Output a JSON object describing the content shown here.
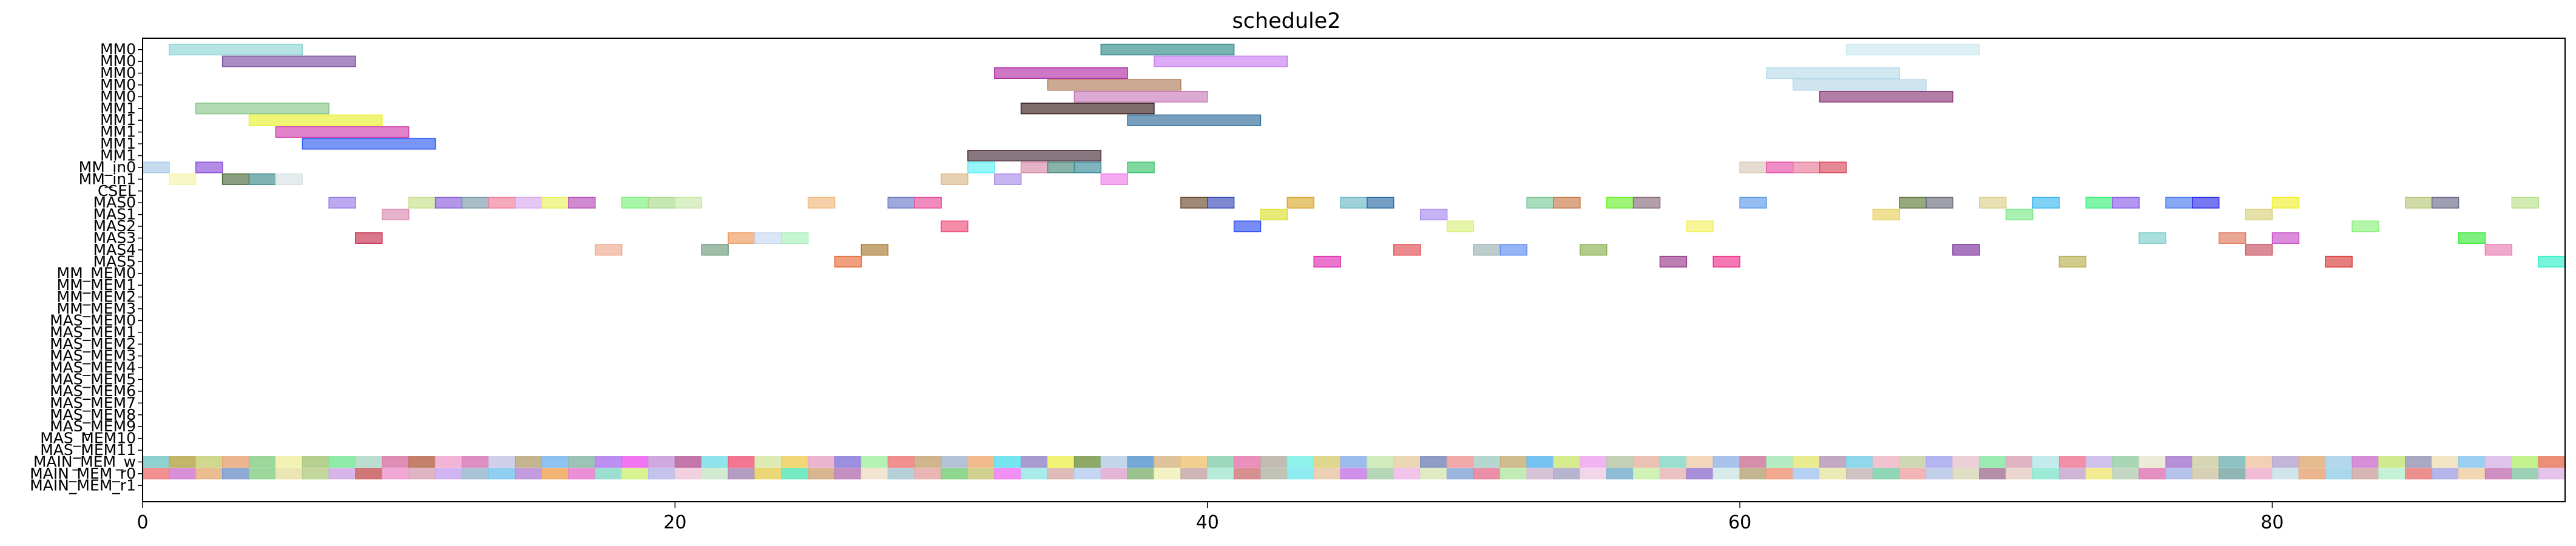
{
  "chart_data": {
    "type": "gantt",
    "title": "schedule2",
    "xlim": [
      0,
      91
    ],
    "x_ticks": [
      0,
      20,
      40,
      60,
      80
    ],
    "x_tick_labels": [
      "0",
      "20",
      "40",
      "60",
      "80"
    ],
    "rows": [
      "MM0",
      "MM0",
      "MM0",
      "MM0",
      "MM0",
      "MM1",
      "MM1",
      "MM1",
      "MM1",
      "MM1",
      "MM_in0",
      "MM_in1",
      "CSEL",
      "MAS0",
      "MAS1",
      "MAS2",
      "MAS3",
      "MAS4",
      "MAS5",
      "MM_MEM0",
      "MM_MEM1",
      "MM_MEM2",
      "MM_MEM3",
      "MAS_MEM0",
      "MAS_MEM1",
      "MAS_MEM2",
      "MAS_MEM3",
      "MAS_MEM4",
      "MAS_MEM5",
      "MAS_MEM6",
      "MAS_MEM7",
      "MAS_MEM8",
      "MAS_MEM9",
      "MAS_MEM10",
      "MAS_MEM11",
      "MAIN_MEM_w",
      "MAIN_MEM_r0",
      "MAIN_MEM_r1"
    ],
    "bars": [
      {
        "row": 0,
        "start": 1,
        "end": 6,
        "color": "#8dd3d3"
      },
      {
        "row": 0,
        "start": 36,
        "end": 41,
        "color": "#2e8b8b"
      },
      {
        "row": 0,
        "start": 64,
        "end": 69,
        "color": "#c9e8f0"
      },
      {
        "row": 1,
        "start": 3,
        "end": 8,
        "color": "#7b4f9e"
      },
      {
        "row": 1,
        "start": 38,
        "end": 43,
        "color": "#c77ff0"
      },
      {
        "row": 2,
        "start": 32,
        "end": 37,
        "color": "#b02fa6"
      },
      {
        "row": 2,
        "start": 61,
        "end": 66,
        "color": "#b8dbeb"
      },
      {
        "row": 3,
        "start": 34,
        "end": 39,
        "color": "#b07b58"
      },
      {
        "row": 3,
        "start": 62,
        "end": 67,
        "color": "#b6d6e8"
      },
      {
        "row": 4,
        "start": 35,
        "end": 40,
        "color": "#c77bb8"
      },
      {
        "row": 4,
        "start": 63,
        "end": 68,
        "color": "#8b3a7a"
      },
      {
        "row": 5,
        "start": 2,
        "end": 7,
        "color": "#88c488"
      },
      {
        "row": 5,
        "start": 33,
        "end": 38,
        "color": "#3a1e1e"
      },
      {
        "row": 6,
        "start": 4,
        "end": 9,
        "color": "#e8f02e"
      },
      {
        "row": 6,
        "start": 37,
        "end": 42,
        "color": "#2e6c9a"
      },
      {
        "row": 7,
        "start": 5,
        "end": 10,
        "color": "#d33fae"
      },
      {
        "row": 8,
        "start": 6,
        "end": 11,
        "color": "#2e5ef0"
      },
      {
        "row": 9,
        "start": 31,
        "end": 36,
        "color": "#4a2e3a"
      },
      {
        "row": 10,
        "start": 0,
        "end": 1,
        "color": "#a8c8e8"
      },
      {
        "row": 10,
        "start": 2,
        "end": 3,
        "color": "#8b4fd9"
      },
      {
        "row": 10,
        "start": 31,
        "end": 32,
        "color": "#5ef0f5"
      },
      {
        "row": 10,
        "start": 33,
        "end": 34,
        "color": "#d98ba8"
      },
      {
        "row": 10,
        "start": 34,
        "end": 35,
        "color": "#4a8b7b"
      },
      {
        "row": 10,
        "start": 35,
        "end": 36,
        "color": "#3a8b9a"
      },
      {
        "row": 10,
        "start": 37,
        "end": 38,
        "color": "#3ac46c"
      },
      {
        "row": 10,
        "start": 60,
        "end": 61,
        "color": "#d9c8b8"
      },
      {
        "row": 10,
        "start": 61,
        "end": 62,
        "color": "#e84fa8"
      },
      {
        "row": 10,
        "start": 62,
        "end": 63,
        "color": "#e87b9a"
      },
      {
        "row": 10,
        "start": 63,
        "end": 64,
        "color": "#d94a5e"
      },
      {
        "row": 11,
        "start": 1,
        "end": 2,
        "color": "#f5f5a8"
      },
      {
        "row": 11,
        "start": 3,
        "end": 4,
        "color": "#4a6b3a"
      },
      {
        "row": 11,
        "start": 4,
        "end": 5,
        "color": "#3a8b8b"
      },
      {
        "row": 11,
        "start": 5,
        "end": 6,
        "color": "#d9e0e0"
      },
      {
        "row": 11,
        "start": 30,
        "end": 31,
        "color": "#d9b88b"
      },
      {
        "row": 11,
        "start": 32,
        "end": 33,
        "color": "#a88be8"
      },
      {
        "row": 11,
        "start": 36,
        "end": 37,
        "color": "#f07be8"
      },
      {
        "row": 13,
        "start": 7,
        "end": 8,
        "color": "#9a7be8"
      },
      {
        "row": 13,
        "start": 10,
        "end": 11,
        "color": "#c8e08b"
      },
      {
        "row": 13,
        "start": 11,
        "end": 12,
        "color": "#8b5ed9"
      },
      {
        "row": 13,
        "start": 12,
        "end": 13,
        "color": "#7b9aa8"
      },
      {
        "row": 13,
        "start": 13,
        "end": 14,
        "color": "#f07b9a"
      },
      {
        "row": 13,
        "start": 14,
        "end": 15,
        "color": "#d9a8f0"
      },
      {
        "row": 13,
        "start": 15,
        "end": 16,
        "color": "#e8f05e"
      },
      {
        "row": 13,
        "start": 16,
        "end": 17,
        "color": "#b84fb8"
      },
      {
        "row": 13,
        "start": 18,
        "end": 19,
        "color": "#7bf07b"
      },
      {
        "row": 13,
        "start": 19,
        "end": 20,
        "color": "#a8d98b"
      },
      {
        "row": 13,
        "start": 20,
        "end": 21,
        "color": "#c8e8a8"
      },
      {
        "row": 13,
        "start": 25,
        "end": 26,
        "color": "#f0b87b"
      },
      {
        "row": 13,
        "start": 28,
        "end": 29,
        "color": "#6b7bc8"
      },
      {
        "row": 13,
        "start": 29,
        "end": 30,
        "color": "#e84f9a"
      },
      {
        "row": 13,
        "start": 39,
        "end": 40,
        "color": "#6b4a2e"
      },
      {
        "row": 13,
        "start": 40,
        "end": 41,
        "color": "#3a4ab8"
      },
      {
        "row": 13,
        "start": 43,
        "end": 44,
        "color": "#d9a82e"
      },
      {
        "row": 13,
        "start": 45,
        "end": 46,
        "color": "#6bb8c8"
      },
      {
        "row": 13,
        "start": 46,
        "end": 47,
        "color": "#2e6ba8"
      },
      {
        "row": 13,
        "start": 52,
        "end": 53,
        "color": "#7bc89a"
      },
      {
        "row": 13,
        "start": 53,
        "end": 54,
        "color": "#c87b4a"
      },
      {
        "row": 13,
        "start": 55,
        "end": 56,
        "color": "#6bf02e"
      },
      {
        "row": 13,
        "start": 56,
        "end": 57,
        "color": "#8b6b7b"
      },
      {
        "row": 13,
        "start": 60,
        "end": 61,
        "color": "#5e9ae8"
      },
      {
        "row": 13,
        "start": 66,
        "end": 67,
        "color": "#5e7b3a"
      },
      {
        "row": 13,
        "start": 67,
        "end": 68,
        "color": "#6b6b7b"
      },
      {
        "row": 13,
        "start": 69,
        "end": 70,
        "color": "#d9d08b"
      },
      {
        "row": 13,
        "start": 71,
        "end": 72,
        "color": "#3ab8f0"
      },
      {
        "row": 13,
        "start": 73,
        "end": 74,
        "color": "#3af07b"
      },
      {
        "row": 13,
        "start": 74,
        "end": 75,
        "color": "#8b5ee8"
      },
      {
        "row": 13,
        "start": 76,
        "end": 77,
        "color": "#4a7bf0"
      },
      {
        "row": 13,
        "start": 77,
        "end": 78,
        "color": "#2e2ee8"
      },
      {
        "row": 13,
        "start": 80,
        "end": 81,
        "color": "#f0f02e"
      },
      {
        "row": 13,
        "start": 85,
        "end": 86,
        "color": "#b8c87b"
      },
      {
        "row": 13,
        "start": 86,
        "end": 87,
        "color": "#6b6b8b"
      },
      {
        "row": 13,
        "start": 89,
        "end": 90,
        "color": "#b8e08b"
      },
      {
        "row": 14,
        "start": 9,
        "end": 10,
        "color": "#d98bb0"
      },
      {
        "row": 14,
        "start": 42,
        "end": 43,
        "color": "#d9e02e"
      },
      {
        "row": 14,
        "start": 48,
        "end": 49,
        "color": "#a88bf0"
      },
      {
        "row": 14,
        "start": 65,
        "end": 66,
        "color": "#e8d05e"
      },
      {
        "row": 14,
        "start": 70,
        "end": 71,
        "color": "#7be88b"
      },
      {
        "row": 14,
        "start": 79,
        "end": 80,
        "color": "#d9d07b"
      },
      {
        "row": 15,
        "start": 30,
        "end": 31,
        "color": "#f04f7b"
      },
      {
        "row": 15,
        "start": 41,
        "end": 42,
        "color": "#2e4ef0"
      },
      {
        "row": 15,
        "start": 49,
        "end": 50,
        "color": "#d9f07b"
      },
      {
        "row": 15,
        "start": 58,
        "end": 59,
        "color": "#f5f05e"
      },
      {
        "row": 15,
        "start": 83,
        "end": 84,
        "color": "#8bf07b"
      },
      {
        "row": 16,
        "start": 8,
        "end": 9,
        "color": "#c82e4f"
      },
      {
        "row": 16,
        "start": 22,
        "end": 23,
        "color": "#f09a5e"
      },
      {
        "row": 16,
        "start": 23,
        "end": 24,
        "color": "#c8d8f0"
      },
      {
        "row": 16,
        "start": 24,
        "end": 25,
        "color": "#a8f0b8"
      },
      {
        "row": 16,
        "start": 75,
        "end": 76,
        "color": "#7bd0c8"
      },
      {
        "row": 16,
        "start": 78,
        "end": 79,
        "color": "#e0785e"
      },
      {
        "row": 16,
        "start": 80,
        "end": 81,
        "color": "#c84fc8"
      },
      {
        "row": 16,
        "start": 87,
        "end": 88,
        "color": "#3ae83a"
      },
      {
        "row": 17,
        "start": 17,
        "end": 18,
        "color": "#f0a88b"
      },
      {
        "row": 17,
        "start": 21,
        "end": 22,
        "color": "#6b9a7b"
      },
      {
        "row": 17,
        "start": 27,
        "end": 28,
        "color": "#a8782e"
      },
      {
        "row": 17,
        "start": 47,
        "end": 48,
        "color": "#e04a4f"
      },
      {
        "row": 17,
        "start": 50,
        "end": 51,
        "color": "#9ab0b0"
      },
      {
        "row": 17,
        "start": 51,
        "end": 52,
        "color": "#5e8bf0"
      },
      {
        "row": 17,
        "start": 54,
        "end": 55,
        "color": "#8bb04f"
      },
      {
        "row": 17,
        "start": 68,
        "end": 69,
        "color": "#7b2e9a"
      },
      {
        "row": 17,
        "start": 79,
        "end": 80,
        "color": "#c84f5e"
      },
      {
        "row": 17,
        "start": 88,
        "end": 89,
        "color": "#e87bb0"
      },
      {
        "row": 18,
        "start": 26,
        "end": 27,
        "color": "#e86b3a"
      },
      {
        "row": 18,
        "start": 44,
        "end": 45,
        "color": "#e02eb0"
      },
      {
        "row": 18,
        "start": 57,
        "end": 58,
        "color": "#9a3a8b"
      },
      {
        "row": 18,
        "start": 59,
        "end": 60,
        "color": "#f02e8b"
      },
      {
        "row": 18,
        "start": 72,
        "end": 73,
        "color": "#b8b04f"
      },
      {
        "row": 18,
        "start": 82,
        "end": 83,
        "color": "#d93a3a"
      },
      {
        "row": 18,
        "start": 90,
        "end": 91,
        "color": "#2ef0c8"
      }
    ],
    "dense_rows": [
      {
        "row": 35,
        "colors": [
          "#7bc8c8",
          "#b8a84f",
          "#c8d07b",
          "#e8a87b",
          "#8bd08b",
          "#f0f0a8",
          "#a8c87b",
          "#7be89a",
          "#b0d8c8",
          "#d97ba8",
          "#b86b4f",
          "#f0a8d0",
          "#d97bb8",
          "#c8c8e8",
          "#b8a87b",
          "#7bb8f0",
          "#8bb8a8",
          "#b07bf0",
          "#f05ef0",
          "#c89ad9",
          "#b85e9a",
          "#7be0e8",
          "#f05e7b",
          "#d9e8a8",
          "#f0d05e",
          "#e8a8c8",
          "#8b7bd9",
          "#a8f0a8",
          "#f07b7b",
          "#c8a87b",
          "#a8b8d0",
          "#f0b07b",
          "#5ee0f0",
          "#9a8bc8",
          "#f0f05e",
          "#7b9a4f",
          "#b8d0e8",
          "#5e9ad0",
          "#d9b88b",
          "#f0c87b",
          "#8bd0b0",
          "#e87bb0",
          "#b8b0a8",
          "#7bf0e8",
          "#d9d07b",
          "#8bb0e8",
          "#c8e8b0",
          "#e8d0a8",
          "#7b8bb8",
          "#f09a9a",
          "#a8d0c8",
          "#c8b07b",
          "#5eb8f0",
          "#d0e87b",
          "#f0a8f0",
          "#b8c8a8",
          "#e8b8a8",
          "#8bd9c8",
          "#f0d0b0",
          "#9ab8e8",
          "#d07b9a",
          "#a8e8b8",
          "#e8e87b",
          "#b89ab8",
          "#7bd0e8",
          "#f0b8c8",
          "#c8d0a8",
          "#a8a8f0",
          "#e8c8d0",
          "#8be8a8",
          "#d9a8b8",
          "#b8e8e8",
          "#f07b9a",
          "#c8b8e8",
          "#9ad0a8",
          "#e8e8d0",
          "#a87bd0",
          "#d0d0a8",
          "#7bb8b8",
          "#f0c8a8",
          "#b8a8d0",
          "#e0b07b",
          "#a8d0e8",
          "#d07bd0",
          "#c8e87b",
          "#9a9ab8",
          "#f0e0b8",
          "#8bc8f0",
          "#d9b8e8",
          "#b8f07b",
          "#e87b5e"
        ]
      },
      {
        "row": 36,
        "colors": [
          "#f07b7b",
          "#d07bd0",
          "#e8b07b",
          "#7b9ad0",
          "#8bd08b",
          "#e8e0a8",
          "#b8d08b",
          "#d0a8e8",
          "#c85e5e",
          "#f09ad0",
          "#d9a8b8",
          "#c8a8f0",
          "#9ab8d0",
          "#7bc8f0",
          "#b88bd9",
          "#f0a85e",
          "#e87bd0",
          "#8bd9c8",
          "#d0f07b",
          "#b8b8e8",
          "#f0c8d9",
          "#c8e8c8",
          "#a88bb8",
          "#e8d05e",
          "#5ee8b8",
          "#d0a87b",
          "#b87bb8",
          "#f0e0c8",
          "#a8c8d0",
          "#e8a8a8",
          "#7bd07b",
          "#c8c87b",
          "#f07bf0",
          "#9ae8e8",
          "#d9b0a8",
          "#b8d0f0",
          "#e0a8d0",
          "#8bb87b",
          "#f0f0b8",
          "#c8a8a8",
          "#a8e8d0",
          "#d07b7b",
          "#b8b8a8",
          "#7be8f0",
          "#e8c8a8",
          "#c87be8",
          "#a8d0a8",
          "#f0b8e8",
          "#d9e8b8",
          "#8ba8d9",
          "#e87b9a",
          "#b8e8a8",
          "#d0b8d0",
          "#a8a8c8",
          "#f0d0e8",
          "#7bb0d0",
          "#c8f0a8",
          "#e8b8b8",
          "#9a7bd0",
          "#d0e8e8",
          "#b8a87b",
          "#f09a7b",
          "#a8c8f0",
          "#e8e8a8",
          "#c8b8b8",
          "#7bd0a8",
          "#f0a8a8",
          "#b8c8e8",
          "#d9d9b8",
          "#a87b9a",
          "#e8d0c8",
          "#8be8d0",
          "#c8a8d0",
          "#f0e87b",
          "#b8d0b8",
          "#e07bb8",
          "#a8b8e8",
          "#d0c8a8",
          "#7ba8a8",
          "#f0b0d0",
          "#c8e0e8",
          "#e8a87b",
          "#9ad0e8",
          "#d0a8a8",
          "#b8f0d0",
          "#e87b7b",
          "#a8a8e8",
          "#f0d0a8",
          "#c87bb8",
          "#8bc8a8",
          "#e0b8e8"
        ]
      }
    ]
  }
}
